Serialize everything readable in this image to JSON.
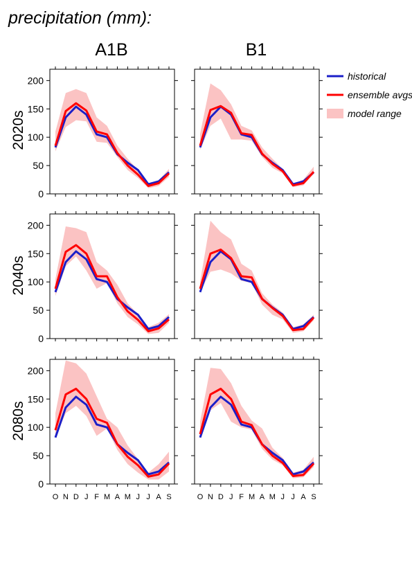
{
  "title": "precipitation (mm):",
  "columns": [
    "A1B",
    "B1"
  ],
  "rows": [
    "2020s",
    "2040s",
    "2080s"
  ],
  "colors": {
    "historical": "#1b1fc8",
    "ensemble": "#ff0000",
    "range": "#fbc3c3"
  },
  "chart_data": {
    "type": "line",
    "categories": [
      "O",
      "N",
      "D",
      "J",
      "F",
      "M",
      "A",
      "M",
      "J",
      "J",
      "A",
      "S"
    ],
    "ylim": [
      0,
      220
    ],
    "yticks": [
      0,
      50,
      100,
      150,
      200
    ],
    "legend": {
      "historical": "historical",
      "ensemble": "ensemble avgs",
      "range": "model range",
      "placement": "right"
    },
    "historical": [
      82,
      135,
      154,
      140,
      105,
      100,
      70,
      55,
      42,
      17,
      22,
      38
    ],
    "panels": [
      {
        "column": "A1B",
        "row": "2020s",
        "ensemble": [
          85,
          146,
          160,
          147,
          110,
          105,
          72,
          50,
          34,
          14,
          19,
          36
        ],
        "range_low": [
          75,
          118,
          130,
          128,
          92,
          90,
          65,
          42,
          28,
          10,
          14,
          30
        ],
        "range_high": [
          110,
          178,
          185,
          178,
          135,
          120,
          85,
          62,
          42,
          19,
          24,
          44
        ]
      },
      {
        "column": "B1",
        "row": "2020s",
        "ensemble": [
          85,
          148,
          155,
          143,
          107,
          104,
          71,
          53,
          40,
          15,
          19,
          39
        ],
        "range_low": [
          78,
          120,
          133,
          96,
          96,
          94,
          65,
          46,
          36,
          12,
          15,
          35
        ],
        "range_high": [
          106,
          195,
          183,
          158,
          120,
          112,
          82,
          62,
          44,
          18,
          25,
          48
        ]
      },
      {
        "column": "A1B",
        "row": "2040s",
        "ensemble": [
          88,
          153,
          165,
          150,
          110,
          110,
          73,
          48,
          33,
          13,
          18,
          34
        ],
        "range_low": [
          75,
          128,
          145,
          120,
          88,
          98,
          62,
          38,
          25,
          8,
          10,
          28
        ],
        "range_high": [
          105,
          198,
          195,
          188,
          135,
          120,
          95,
          62,
          43,
          20,
          28,
          43
        ]
      },
      {
        "column": "B1",
        "row": "2040s",
        "ensemble": [
          88,
          150,
          157,
          142,
          110,
          108,
          70,
          54,
          40,
          15,
          17,
          37
        ],
        "range_low": [
          82,
          118,
          122,
          115,
          102,
          98,
          60,
          42,
          34,
          10,
          13,
          32
        ],
        "range_high": [
          100,
          208,
          188,
          175,
          132,
          120,
          80,
          60,
          46,
          20,
          25,
          42
        ]
      },
      {
        "column": "A1B",
        "row": "2080s",
        "ensemble": [
          95,
          158,
          168,
          150,
          115,
          108,
          70,
          48,
          33,
          13,
          17,
          36
        ],
        "range_low": [
          82,
          125,
          138,
          120,
          85,
          98,
          60,
          35,
          20,
          8,
          8,
          22
        ],
        "range_high": [
          125,
          218,
          213,
          195,
          155,
          115,
          100,
          68,
          44,
          20,
          35,
          57
        ]
      },
      {
        "column": "B1",
        "row": "2080s",
        "ensemble": [
          88,
          158,
          168,
          150,
          110,
          104,
          70,
          50,
          37,
          14,
          16,
          36
        ],
        "range_low": [
          82,
          130,
          143,
          110,
          100,
          96,
          62,
          43,
          33,
          10,
          12,
          30
        ],
        "range_high": [
          110,
          205,
          203,
          178,
          138,
          112,
          98,
          64,
          46,
          20,
          25,
          48
        ]
      }
    ]
  }
}
